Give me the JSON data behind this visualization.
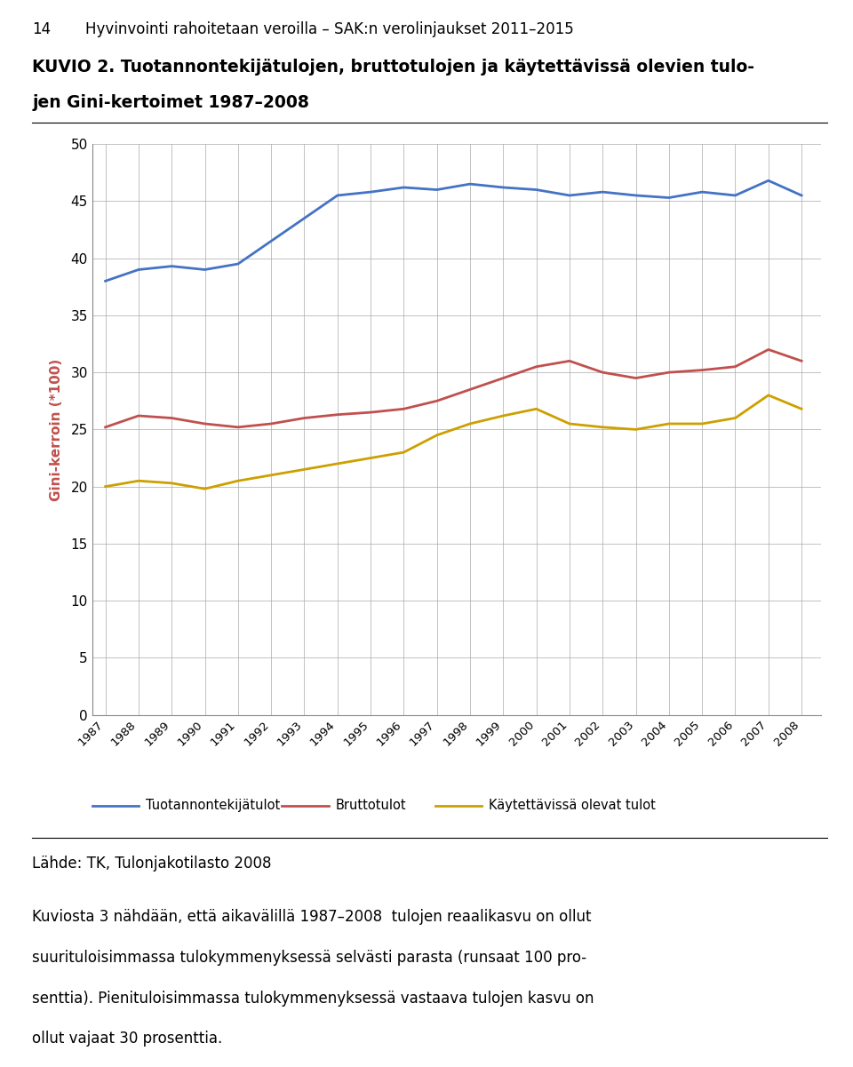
{
  "header_num": "14",
  "header_text": "Hyvinvointi rahoitetaan veroilla – SAK:n verolinjaukset 2011–2015",
  "kuvio_label": "KUVIO 2.",
  "kuvio_title_line1": "Tuotannontekijätulojen, bruttotulojen ja käytettävissä olevien tulo-",
  "kuvio_title_line2": "jen Gini-kertoimet 1987–2008",
  "years": [
    1987,
    1988,
    1989,
    1990,
    1991,
    1992,
    1993,
    1994,
    1995,
    1996,
    1997,
    1998,
    1999,
    2000,
    2001,
    2002,
    2003,
    2004,
    2005,
    2006,
    2007,
    2008
  ],
  "tuotannontekijatulot": [
    38.0,
    39.0,
    39.3,
    39.0,
    39.5,
    41.5,
    43.5,
    45.5,
    45.8,
    46.2,
    46.0,
    46.5,
    46.2,
    46.0,
    45.5,
    45.8,
    45.5,
    45.3,
    45.8,
    45.5,
    46.8,
    45.5
  ],
  "bruttotulot": [
    25.2,
    26.2,
    26.0,
    25.5,
    25.2,
    25.5,
    26.0,
    26.3,
    26.5,
    26.8,
    27.5,
    28.5,
    29.5,
    30.5,
    31.0,
    30.0,
    29.5,
    30.0,
    30.2,
    30.5,
    32.0,
    31.0
  ],
  "kaytettavissa": [
    20.0,
    20.5,
    20.3,
    19.8,
    20.5,
    21.0,
    21.5,
    22.0,
    22.5,
    23.0,
    24.5,
    25.5,
    26.2,
    26.8,
    25.5,
    25.2,
    25.0,
    25.5,
    25.5,
    26.0,
    28.0,
    26.8
  ],
  "ylabel": "Gini-kerroin (*100)",
  "ylim": [
    0,
    50
  ],
  "yticks": [
    0,
    5,
    10,
    15,
    20,
    25,
    30,
    35,
    40,
    45,
    50
  ],
  "color_blue": "#4472C4",
  "color_red": "#C0504D",
  "color_yellow": "#CCA000",
  "legend_labels": [
    "Tuotannontekijätulot",
    "Bruttotulot",
    "Käytettävissä olevat tulot"
  ],
  "source_text": "Lähde: TK, Tulonjakotilasto 2008",
  "body_text_line1": "Kuviosta 3 nähdään, että aikavälillä 1987–2008  tulojen reaalikasvu on ollut",
  "body_text_line2": "suurituloisimmassa tulokymmenyksessä selvästi parasta (runsaat 100 pro-",
  "body_text_line3": "senttia). Pienituloisimmassa tulokymmenyksessä vastaava tulojen kasvu on",
  "body_text_line4": "ollut vajaat 30 prosenttia.",
  "line_width": 2.0,
  "grid_color": "#AAAAAA",
  "bg_color": "#ffffff"
}
